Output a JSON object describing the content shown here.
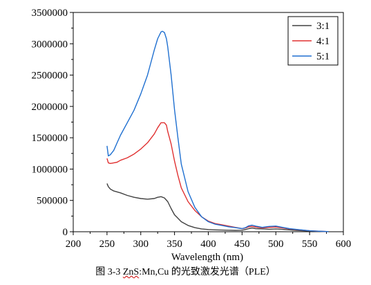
{
  "chart_data": {
    "type": "line",
    "title": "",
    "xlabel": "Wavelength (nm)",
    "ylabel": "",
    "xlim": [
      200,
      600
    ],
    "ylim": [
      0,
      3500000
    ],
    "x_ticks": [
      200,
      250,
      300,
      350,
      400,
      450,
      500,
      550,
      600
    ],
    "y_ticks": [
      0,
      500000,
      1000000,
      1500000,
      2000000,
      2500000,
      3000000,
      3500000
    ],
    "grid": false,
    "legend_position": "top-right",
    "series": [
      {
        "name": "3:1",
        "color": "#404040",
        "x": [
          250,
          252,
          255,
          260,
          270,
          280,
          290,
          300,
          310,
          320,
          325,
          330,
          335,
          340,
          345,
          350,
          360,
          370,
          380,
          390,
          400,
          410,
          420,
          430,
          440,
          450,
          455,
          460,
          465,
          470,
          480,
          490,
          500,
          510,
          520,
          530,
          540,
          550,
          560,
          570,
          578
        ],
        "values": [
          770000,
          720000,
          680000,
          650000,
          620000,
          580000,
          550000,
          530000,
          520000,
          530000,
          550000,
          560000,
          540000,
          480000,
          370000,
          270000,
          160000,
          100000,
          65000,
          45000,
          35000,
          30000,
          26000,
          24000,
          22000,
          24000,
          35000,
          50000,
          60000,
          50000,
          45000,
          40000,
          45000,
          38000,
          30000,
          22000,
          15000,
          10000,
          6000,
          3000,
          1000
        ]
      },
      {
        "name": "4:1",
        "color": "#e03030",
        "x": [
          250,
          252,
          255,
          260,
          265,
          270,
          280,
          290,
          300,
          310,
          320,
          325,
          330,
          335,
          338,
          340,
          345,
          350,
          355,
          360,
          370,
          380,
          390,
          400,
          410,
          420,
          430,
          440,
          450,
          455,
          460,
          465,
          470,
          480,
          490,
          500,
          510,
          520,
          530,
          540,
          550,
          560,
          570,
          578
        ],
        "values": [
          1170000,
          1100000,
          1090000,
          1100000,
          1110000,
          1140000,
          1180000,
          1240000,
          1320000,
          1420000,
          1560000,
          1660000,
          1740000,
          1740000,
          1700000,
          1600000,
          1400000,
          1130000,
          900000,
          700000,
          480000,
          340000,
          240000,
          170000,
          130000,
          110000,
          90000,
          70000,
          50000,
          60000,
          80000,
          85000,
          75000,
          60000,
          70000,
          75000,
          60000,
          45000,
          35000,
          25000,
          15000,
          10000,
          5000,
          2000
        ]
      },
      {
        "name": "5:1",
        "color": "#1e6fd0",
        "x": [
          250,
          252,
          255,
          260,
          265,
          270,
          280,
          290,
          300,
          310,
          315,
          320,
          325,
          330,
          332,
          335,
          338,
          340,
          345,
          350,
          355,
          360,
          370,
          380,
          390,
          400,
          410,
          420,
          430,
          440,
          450,
          455,
          460,
          465,
          470,
          480,
          490,
          500,
          510,
          520,
          530,
          540,
          550,
          560,
          570,
          578
        ],
        "values": [
          1370000,
          1210000,
          1230000,
          1300000,
          1420000,
          1540000,
          1740000,
          1940000,
          2200000,
          2500000,
          2700000,
          2900000,
          3080000,
          3190000,
          3200000,
          3180000,
          3080000,
          2950000,
          2500000,
          1950000,
          1500000,
          1080000,
          640000,
          390000,
          240000,
          160000,
          120000,
          100000,
          80000,
          65000,
          50000,
          65000,
          95000,
          105000,
          90000,
          70000,
          85000,
          90000,
          70000,
          50000,
          38000,
          26000,
          15000,
          10000,
          5000,
          2000
        ]
      }
    ]
  },
  "caption": {
    "prefix": "图 3-3 ",
    "compound_underlined": "ZnS",
    "compound_rest": ":Mn,Cu",
    "suffix": " 的光致激发光谱（PLE）"
  }
}
